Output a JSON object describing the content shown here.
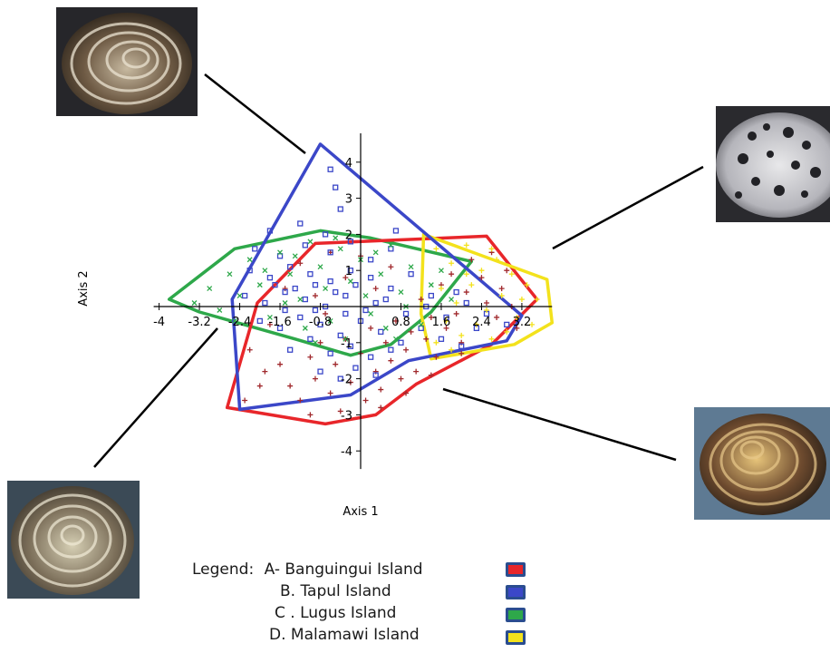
{
  "chart_data": {
    "type": "scatter",
    "xlabel": "Axis 1",
    "ylabel": "Axis 2",
    "xlim": [
      -4,
      3.8
    ],
    "ylim": [
      -4.5,
      4.8
    ],
    "x_ticks": [
      -4,
      -3.2,
      -2.4,
      -1.6,
      -0.8,
      0.8,
      1.6,
      2.4,
      3.2
    ],
    "x_tick_labels": [
      "-4",
      "-3.2",
      "-2.4",
      "-1.6",
      "-0.8",
      "0.8",
      "1.6",
      "2.4",
      "3.2"
    ],
    "y_ticks": [
      -4,
      -3,
      -2,
      -1,
      1,
      2,
      3,
      4
    ],
    "y_tick_labels": [
      "-4",
      "-3",
      "-2",
      "-1",
      "1",
      "2",
      "3",
      "4"
    ],
    "series": [
      {
        "name": "A- Banguingui Island",
        "color": "#e8262a",
        "marker": "plus",
        "hull": [
          [
            -2.65,
            -2.8
          ],
          [
            -2.05,
            0.1
          ],
          [
            -0.9,
            1.75
          ],
          [
            2.5,
            1.95
          ],
          [
            3.5,
            0.2
          ],
          [
            2.6,
            -1.05
          ],
          [
            1.1,
            -2.15
          ],
          [
            0.3,
            -3.0
          ],
          [
            -0.7,
            -3.25
          ]
        ],
        "points": [
          [
            -2.3,
            -2.6
          ],
          [
            -2.0,
            -2.2
          ],
          [
            -1.9,
            -1.8
          ],
          [
            -1.6,
            -1.6
          ],
          [
            -1.4,
            -2.2
          ],
          [
            -1.2,
            -2.6
          ],
          [
            -1.0,
            -1.4
          ],
          [
            -0.9,
            -2.0
          ],
          [
            -0.8,
            -1.0
          ],
          [
            -0.6,
            -2.4
          ],
          [
            -0.5,
            -1.6
          ],
          [
            -0.4,
            -2.9
          ],
          [
            -0.3,
            -0.9
          ],
          [
            -0.2,
            -2.1
          ],
          [
            0.0,
            -1.3
          ],
          [
            0.1,
            -2.6
          ],
          [
            0.2,
            -0.6
          ],
          [
            0.3,
            -1.8
          ],
          [
            0.4,
            -2.3
          ],
          [
            0.5,
            -1.0
          ],
          [
            0.6,
            -1.5
          ],
          [
            0.7,
            -0.4
          ],
          [
            0.8,
            -2.0
          ],
          [
            0.9,
            -1.2
          ],
          [
            1.0,
            -0.7
          ],
          [
            1.1,
            -1.8
          ],
          [
            1.2,
            0.2
          ],
          [
            1.3,
            -0.9
          ],
          [
            1.4,
            -0.3
          ],
          [
            1.5,
            -1.4
          ],
          [
            1.6,
            0.6
          ],
          [
            1.7,
            -0.6
          ],
          [
            1.8,
            0.9
          ],
          [
            1.9,
            -0.2
          ],
          [
            2.0,
            -1.0
          ],
          [
            2.1,
            0.4
          ],
          [
            2.2,
            1.3
          ],
          [
            2.3,
            -0.5
          ],
          [
            2.4,
            0.8
          ],
          [
            2.5,
            0.1
          ],
          [
            2.6,
            1.5
          ],
          [
            2.7,
            -0.3
          ],
          [
            2.8,
            0.5
          ],
          [
            2.9,
            1.0
          ],
          [
            3.0,
            0.0
          ],
          [
            3.1,
            -0.6
          ],
          [
            -1.5,
            0.5
          ],
          [
            -1.2,
            1.2
          ],
          [
            -0.9,
            0.3
          ],
          [
            -0.6,
            1.5
          ],
          [
            -0.3,
            0.8
          ],
          [
            0.0,
            1.4
          ],
          [
            0.3,
            0.5
          ],
          [
            0.6,
            1.1
          ],
          [
            -1.8,
            -0.5
          ],
          [
            -2.2,
            -1.2
          ],
          [
            -0.7,
            -0.2
          ],
          [
            1.4,
            -1.9
          ],
          [
            0.9,
            -2.4
          ],
          [
            -1.0,
            -3.0
          ],
          [
            0.4,
            -2.8
          ],
          [
            2.0,
            -1.3
          ]
        ]
      },
      {
        "name": "B. Tapul Island",
        "color": "#3b47c8",
        "marker": "square",
        "hull": [
          [
            -2.4,
            -2.85
          ],
          [
            -2.55,
            0.2
          ],
          [
            -0.8,
            4.5
          ],
          [
            3.2,
            -0.25
          ],
          [
            2.9,
            -0.95
          ],
          [
            0.95,
            -1.5
          ],
          [
            -0.2,
            -2.45
          ]
        ],
        "points": [
          [
            -0.6,
            3.8
          ],
          [
            -0.5,
            3.3
          ],
          [
            -0.4,
            2.7
          ],
          [
            -1.8,
            2.1
          ],
          [
            -1.2,
            2.3
          ],
          [
            -0.7,
            2.0
          ],
          [
            -2.1,
            1.6
          ],
          [
            -1.6,
            1.4
          ],
          [
            -1.1,
            1.7
          ],
          [
            -0.6,
            1.5
          ],
          [
            -0.2,
            1.8
          ],
          [
            0.2,
            1.3
          ],
          [
            0.6,
            1.6
          ],
          [
            -2.2,
            1.0
          ],
          [
            -1.8,
            0.8
          ],
          [
            -1.4,
            1.1
          ],
          [
            -1.0,
            0.9
          ],
          [
            -0.6,
            0.7
          ],
          [
            -0.2,
            1.0
          ],
          [
            0.2,
            0.8
          ],
          [
            0.6,
            0.5
          ],
          [
            1.0,
            0.9
          ],
          [
            1.4,
            0.3
          ],
          [
            -2.3,
            0.3
          ],
          [
            -1.9,
            0.1
          ],
          [
            -1.5,
            0.4
          ],
          [
            -1.1,
            0.2
          ],
          [
            -0.7,
            0.0
          ],
          [
            -0.3,
            0.3
          ],
          [
            0.1,
            -0.1
          ],
          [
            0.5,
            0.2
          ],
          [
            0.9,
            -0.2
          ],
          [
            1.3,
            0.0
          ],
          [
            1.7,
            -0.3
          ],
          [
            2.1,
            0.1
          ],
          [
            2.5,
            -0.2
          ],
          [
            2.9,
            -0.5
          ],
          [
            -2.0,
            -0.4
          ],
          [
            -1.6,
            -0.6
          ],
          [
            -1.2,
            -0.3
          ],
          [
            -0.8,
            -0.5
          ],
          [
            -0.4,
            -0.8
          ],
          [
            0.0,
            -0.4
          ],
          [
            0.4,
            -0.7
          ],
          [
            0.8,
            -1.0
          ],
          [
            1.2,
            -0.6
          ],
          [
            1.6,
            -0.9
          ],
          [
            2.0,
            -1.1
          ],
          [
            -1.4,
            -1.2
          ],
          [
            -1.0,
            -0.9
          ],
          [
            -0.6,
            -1.3
          ],
          [
            -0.2,
            -1.1
          ],
          [
            0.2,
            -1.4
          ],
          [
            0.6,
            -1.2
          ],
          [
            -0.8,
            -1.8
          ],
          [
            -0.4,
            -2.0
          ],
          [
            -0.1,
            -1.7
          ],
          [
            0.3,
            -1.9
          ],
          [
            -1.7,
            0.6
          ],
          [
            -1.3,
            0.5
          ],
          [
            -0.9,
            0.6
          ],
          [
            -0.5,
            0.4
          ],
          [
            -0.1,
            0.6
          ],
          [
            0.3,
            0.1
          ],
          [
            -0.3,
            -0.2
          ],
          [
            -0.9,
            -0.1
          ],
          [
            -1.5,
            -0.1
          ],
          [
            2.3,
            -0.6
          ],
          [
            1.9,
            0.4
          ],
          [
            0.7,
            2.1
          ]
        ]
      },
      {
        "name": "C . Lugus Island",
        "color": "#2ea84a",
        "marker": "x",
        "hull": [
          [
            -3.8,
            0.2
          ],
          [
            -2.5,
            1.6
          ],
          [
            -0.8,
            2.1
          ],
          [
            0.2,
            1.9
          ],
          [
            2.2,
            1.25
          ],
          [
            1.4,
            -0.15
          ],
          [
            0.6,
            -1.05
          ],
          [
            -0.2,
            -1.35
          ],
          [
            -1.3,
            -0.9
          ],
          [
            -3.2,
            -0.15
          ]
        ],
        "points": [
          [
            -3.3,
            0.1
          ],
          [
            -3.0,
            0.5
          ],
          [
            -2.8,
            -0.1
          ],
          [
            -2.6,
            0.9
          ],
          [
            -2.4,
            0.3
          ],
          [
            -2.2,
            1.3
          ],
          [
            -2.0,
            0.6
          ],
          [
            -1.8,
            -0.3
          ],
          [
            -1.6,
            1.5
          ],
          [
            -1.4,
            0.9
          ],
          [
            -1.2,
            0.2
          ],
          [
            -1.0,
            1.8
          ],
          [
            -0.8,
            1.1
          ],
          [
            -0.6,
            -0.4
          ],
          [
            -0.4,
            1.6
          ],
          [
            -0.2,
            0.7
          ],
          [
            0.0,
            1.3
          ],
          [
            0.2,
            -0.2
          ],
          [
            0.4,
            0.9
          ],
          [
            0.6,
            1.7
          ],
          [
            0.8,
            0.4
          ],
          [
            1.0,
            1.1
          ],
          [
            1.2,
            -0.5
          ],
          [
            1.4,
            0.6
          ],
          [
            1.6,
            1.0
          ],
          [
            1.8,
            0.2
          ],
          [
            -1.9,
            1.0
          ],
          [
            -1.5,
            0.1
          ],
          [
            -1.1,
            -0.6
          ],
          [
            -0.7,
            0.5
          ],
          [
            -0.3,
            -0.9
          ],
          [
            0.1,
            0.3
          ],
          [
            0.5,
            -0.6
          ],
          [
            0.9,
            0.0
          ],
          [
            -2.5,
            -0.4
          ],
          [
            -1.3,
            1.4
          ],
          [
            -0.5,
            1.9
          ],
          [
            0.3,
            1.5
          ],
          [
            0.7,
            -0.9
          ],
          [
            -0.9,
            -1.0
          ]
        ]
      },
      {
        "name": "D. Malamawi Island",
        "color": "#f3e21c",
        "marker": "plus",
        "hull": [
          [
            1.25,
            2.0
          ],
          [
            3.7,
            0.75
          ],
          [
            3.8,
            -0.45
          ],
          [
            3.05,
            -1.05
          ],
          [
            1.4,
            -1.45
          ],
          [
            1.2,
            -0.2
          ]
        ],
        "points": [
          [
            1.5,
            1.6
          ],
          [
            1.8,
            1.2
          ],
          [
            2.1,
            1.7
          ],
          [
            2.4,
            1.0
          ],
          [
            2.7,
            1.3
          ],
          [
            3.0,
            0.9
          ],
          [
            3.3,
            0.6
          ],
          [
            3.5,
            0.2
          ],
          [
            1.6,
            0.5
          ],
          [
            1.9,
            0.1
          ],
          [
            2.2,
            0.6
          ],
          [
            2.5,
            -0.1
          ],
          [
            2.8,
            0.3
          ],
          [
            3.1,
            -0.3
          ],
          [
            3.4,
            -0.5
          ],
          [
            1.7,
            -0.4
          ],
          [
            2.0,
            -0.8
          ],
          [
            2.3,
            -0.5
          ],
          [
            2.6,
            -0.9
          ],
          [
            2.9,
            -0.7
          ],
          [
            1.5,
            -1.0
          ],
          [
            1.8,
            -1.2
          ],
          [
            2.1,
            0.9
          ],
          [
            3.2,
            0.2
          ],
          [
            2.6,
            1.6
          ]
        ]
      }
    ],
    "legend": {
      "title": "Legend:",
      "position": "bottom-center",
      "entries": [
        "A- Banguingui Island",
        "B. Tapul Island",
        "C . Lugus Island",
        "D. Malamawi Island"
      ]
    }
  },
  "photos": [
    {
      "id": "shell-top-left",
      "pattern": "spiral-dark-brown"
    },
    {
      "id": "shell-top-right",
      "pattern": "mottled-white-black"
    },
    {
      "id": "shell-bottom-right",
      "pattern": "spiral-dark-orange"
    },
    {
      "id": "shell-bottom-left",
      "pattern": "spiral-brown-grey"
    }
  ],
  "colors": {
    "axis": "#000000",
    "leader_line": "#000000",
    "text": "#1a1a1a"
  }
}
